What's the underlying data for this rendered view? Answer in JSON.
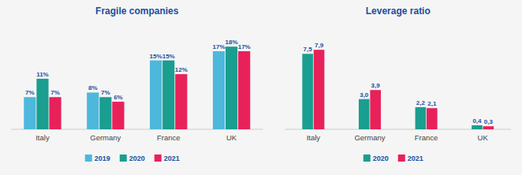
{
  "chart_data": [
    {
      "type": "bar",
      "title": "Fragile companies",
      "categories": [
        "Italy",
        "Germany",
        "France",
        "UK"
      ],
      "series": [
        {
          "name": "2019",
          "color": "#4DB8DC",
          "values": [
            7,
            8,
            15,
            17
          ],
          "value_labels": [
            "7%",
            "8%",
            "15%",
            "17%"
          ]
        },
        {
          "name": "2020",
          "color": "#1A9E8F",
          "values": [
            11,
            7,
            15,
            18
          ],
          "value_labels": [
            "11%",
            "7%",
            "15%",
            "18%"
          ]
        },
        {
          "name": "2021",
          "color": "#E8215A",
          "values": [
            7,
            6,
            12,
            17
          ],
          "value_labels": [
            "7%",
            "6%",
            "12%",
            "17%"
          ]
        }
      ],
      "ylim": [
        0,
        23
      ],
      "grid": false,
      "legend": "bottom",
      "data_labels": true,
      "tick_labels": "x"
    },
    {
      "type": "bar",
      "title": "Leverage ratio",
      "categories": [
        "Italy",
        "Germany",
        "France",
        "UK"
      ],
      "series": [
        {
          "name": "2020",
          "color": "#1A9E8F",
          "values": [
            7.5,
            3.0,
            2.2,
            0.4
          ],
          "value_labels": [
            "7,5",
            "3,0",
            "2,2",
            "0,4"
          ]
        },
        {
          "name": "2021",
          "color": "#E8215A",
          "values": [
            7.9,
            3.9,
            2.1,
            0.3
          ],
          "value_labels": [
            "7,9",
            "3,9",
            "2,1",
            "0,3"
          ]
        }
      ],
      "ylim": [
        0,
        10.5
      ],
      "grid": false,
      "legend": "bottom",
      "data_labels": true,
      "tick_labels": "x"
    }
  ]
}
